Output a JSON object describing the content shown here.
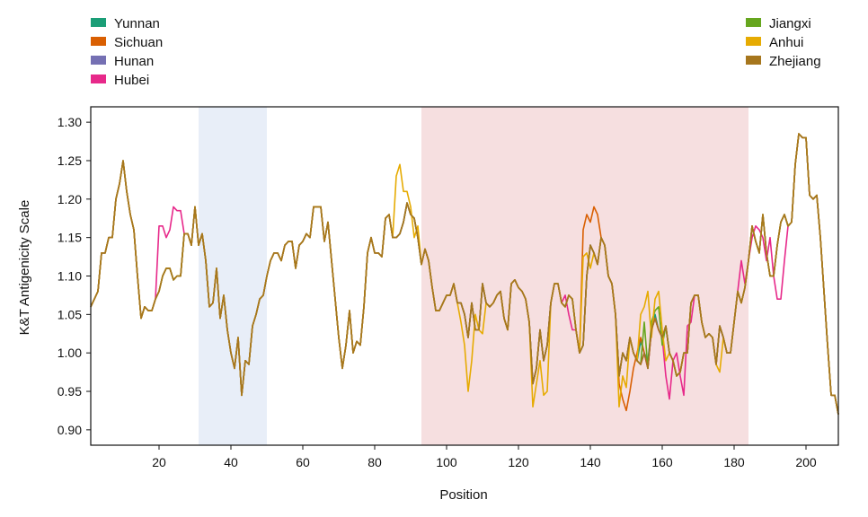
{
  "chart_data": {
    "type": "line",
    "title": "",
    "xlabel": "Position",
    "ylabel": "K&T Antigenicity Scale",
    "xlim": [
      1,
      209
    ],
    "ylim": [
      0.88,
      1.32
    ],
    "xticks": [
      20,
      40,
      60,
      80,
      100,
      120,
      140,
      160,
      180,
      200
    ],
    "yticks": [
      0.9,
      0.95,
      1.0,
      1.05,
      1.1,
      1.15,
      1.2,
      1.25,
      1.3
    ],
    "ytick_labels": [
      "0.90",
      "0.95",
      "1.00",
      "1.05",
      "1.10",
      "1.15",
      "1.20",
      "1.25",
      "1.30"
    ],
    "grid": false,
    "legend": {
      "left": [
        "Yunnan",
        "Sichuan",
        "Hunan",
        "Hubei"
      ],
      "right": [
        "Jiangxi",
        "Anhui",
        "Zhejiang"
      ]
    },
    "highlight_regions": [
      {
        "x": [
          31,
          50
        ],
        "color": "#e8eef8"
      },
      {
        "x": [
          93,
          184
        ],
        "color": "#f6dfe0"
      }
    ],
    "base_x": [
      1,
      3,
      4,
      5,
      6,
      7,
      8,
      9,
      10,
      11,
      12,
      13,
      14,
      15,
      16,
      17,
      18,
      19,
      20,
      21,
      22,
      23,
      24,
      25,
      26,
      27,
      28,
      29,
      30,
      31,
      32,
      33,
      34,
      35,
      36,
      37,
      38,
      39,
      40,
      41,
      42,
      43,
      44,
      45,
      46,
      47,
      48,
      49,
      50,
      51,
      52,
      53,
      54,
      55,
      56,
      57,
      58,
      59,
      60,
      61,
      62,
      63,
      64,
      65,
      66,
      67,
      68,
      69,
      70,
      71,
      72,
      73,
      74,
      75,
      76,
      77,
      78,
      79,
      80,
      81,
      82,
      83,
      84,
      85,
      86,
      87,
      88,
      89,
      90,
      91,
      92,
      93,
      94,
      95,
      96,
      97,
      98,
      99,
      100,
      101,
      102,
      103,
      104,
      105,
      106,
      107,
      108,
      109,
      110,
      111,
      112,
      113,
      114,
      115,
      116,
      117,
      118,
      119,
      120,
      121,
      122,
      123,
      124,
      125,
      126,
      127,
      128,
      129,
      130,
      131,
      132,
      133,
      134,
      135,
      136,
      137,
      138,
      139,
      140,
      141,
      142,
      143,
      144,
      145,
      146,
      147,
      148,
      149,
      150,
      151,
      152,
      153,
      154,
      155,
      156,
      157,
      158,
      159,
      160,
      161,
      162,
      163,
      164,
      165,
      166,
      167,
      168,
      169,
      170,
      171,
      172,
      173,
      174,
      175,
      176,
      177,
      178,
      179,
      180,
      181,
      182,
      183,
      184,
      185,
      186,
      187,
      188,
      189,
      190,
      191,
      192,
      193,
      194,
      195,
      196,
      197,
      198,
      199,
      200,
      201,
      202,
      203,
      204,
      205,
      206,
      207,
      208,
      209
    ],
    "series": [
      {
        "name": "Yunnan",
        "color": "#1b9e77",
        "overrides": {
          "154": 1.015,
          "156": 0.99,
          "158": 1.05
        }
      },
      {
        "name": "Sichuan",
        "color": "#d95f02",
        "overrides": {
          "138": 1.16,
          "139": 1.18,
          "140": 1.17,
          "141": 1.19,
          "142": 1.18,
          "148": 0.96,
          "149": 0.94,
          "150": 0.925,
          "151": 0.95,
          "152": 0.98,
          "153": 1.0,
          "154": 1.02
        }
      },
      {
        "name": "Hunan",
        "color": "#7570b3",
        "overrides": {}
      },
      {
        "name": "Hubei",
        "color": "#e7298a",
        "overrides": {
          "20": 1.165,
          "21": 1.165,
          "22": 1.15,
          "23": 1.16,
          "24": 1.19,
          "25": 1.185,
          "26": 1.185,
          "133": 1.075,
          "134": 1.05,
          "135": 1.03,
          "136": 1.03,
          "161": 0.97,
          "162": 0.94,
          "163": 0.99,
          "164": 1.0,
          "165": 0.97,
          "166": 0.945,
          "167": 1.035,
          "168": 1.04,
          "182": 1.12,
          "183": 1.09,
          "184": 1.12,
          "185": 1.15,
          "186": 1.165,
          "187": 1.16,
          "188": 1.15,
          "189": 1.12,
          "190": 1.15,
          "191": 1.1,
          "192": 1.07,
          "193": 1.07,
          "194": 1.12
        }
      },
      {
        "name": "Jiangxi",
        "color": "#66a61e",
        "overrides": {
          "155": 1.04,
          "157": 1.04,
          "158": 1.055,
          "159": 1.06,
          "160": 1.01
        }
      },
      {
        "name": "Anhui",
        "color": "#e6ab02",
        "overrides": {
          "86": 1.23,
          "87": 1.245,
          "88": 1.21,
          "89": 1.21,
          "90": 1.19,
          "91": 1.15,
          "92": 1.165,
          "104": 1.04,
          "105": 1.01,
          "106": 0.95,
          "107": 0.99,
          "108": 1.05,
          "109": 1.03,
          "110": 1.025,
          "124": 0.93,
          "125": 0.96,
          "126": 0.99,
          "127": 0.945,
          "128": 0.95,
          "138": 1.125,
          "139": 1.13,
          "140": 1.11,
          "148": 0.93,
          "149": 0.97,
          "150": 0.955,
          "154": 1.05,
          "155": 1.06,
          "156": 1.08,
          "157": 1.02,
          "158": 1.07,
          "159": 1.08,
          "160": 1.03,
          "161": 0.99,
          "176": 0.975,
          "177": 1.02
        }
      },
      {
        "name": "Zhejiang",
        "color": "#a6761d",
        "overrides": {}
      }
    ],
    "base_y": [
      1.06,
      1.08,
      1.13,
      1.13,
      1.15,
      1.15,
      1.2,
      1.22,
      1.25,
      1.21,
      1.18,
      1.16,
      1.1,
      1.045,
      1.06,
      1.055,
      1.055,
      1.07,
      1.08,
      1.1,
      1.11,
      1.11,
      1.095,
      1.1,
      1.1,
      1.155,
      1.155,
      1.14,
      1.19,
      1.14,
      1.155,
      1.12,
      1.06,
      1.065,
      1.11,
      1.045,
      1.075,
      1.03,
      1.0,
      0.98,
      1.02,
      0.945,
      0.99,
      0.985,
      1.035,
      1.05,
      1.07,
      1.075,
      1.1,
      1.12,
      1.13,
      1.13,
      1.12,
      1.14,
      1.145,
      1.145,
      1.11,
      1.14,
      1.145,
      1.155,
      1.15,
      1.19,
      1.19,
      1.19,
      1.145,
      1.17,
      1.12,
      1.07,
      1.02,
      0.98,
      1.01,
      1.055,
      1.0,
      1.015,
      1.01,
      1.06,
      1.13,
      1.15,
      1.13,
      1.13,
      1.125,
      1.175,
      1.18,
      1.15,
      1.15,
      1.155,
      1.17,
      1.195,
      1.18,
      1.175,
      1.15,
      1.115,
      1.135,
      1.12,
      1.085,
      1.055,
      1.055,
      1.065,
      1.075,
      1.075,
      1.09,
      1.065,
      1.065,
      1.05,
      1.02,
      1.065,
      1.03,
      1.03,
      1.09,
      1.065,
      1.06,
      1.065,
      1.075,
      1.08,
      1.045,
      1.03,
      1.09,
      1.095,
      1.085,
      1.08,
      1.07,
      1.04,
      0.96,
      0.98,
      1.03,
      0.99,
      1.01,
      1.065,
      1.09,
      1.09,
      1.065,
      1.06,
      1.075,
      1.07,
      1.03,
      1.0,
      1.01,
      1.1,
      1.14,
      1.13,
      1.115,
      1.15,
      1.14,
      1.1,
      1.09,
      1.05,
      0.97,
      1.0,
      0.99,
      1.02,
      1.0,
      0.99,
      0.985,
      1.0,
      0.98,
      1.03,
      1.045,
      1.03,
      1.02,
      1.035,
      1.0,
      0.99,
      0.97,
      0.975,
      1.0,
      1.0,
      1.065,
      1.075,
      1.075,
      1.04,
      1.02,
      1.025,
      1.02,
      0.985,
      1.035,
      1.02,
      1.0,
      1.0,
      1.04,
      1.08,
      1.065,
      1.085,
      1.12,
      1.165,
      1.145,
      1.13,
      1.18,
      1.13,
      1.1,
      1.1,
      1.14,
      1.17,
      1.18,
      1.165,
      1.17,
      1.245,
      1.285,
      1.28,
      1.28,
      1.205,
      1.2,
      1.205,
      1.15,
      1.08,
      1.01,
      0.945,
      0.945,
      0.92
    ]
  },
  "colors": {
    "axis": "#111111",
    "background": "#ffffff"
  }
}
